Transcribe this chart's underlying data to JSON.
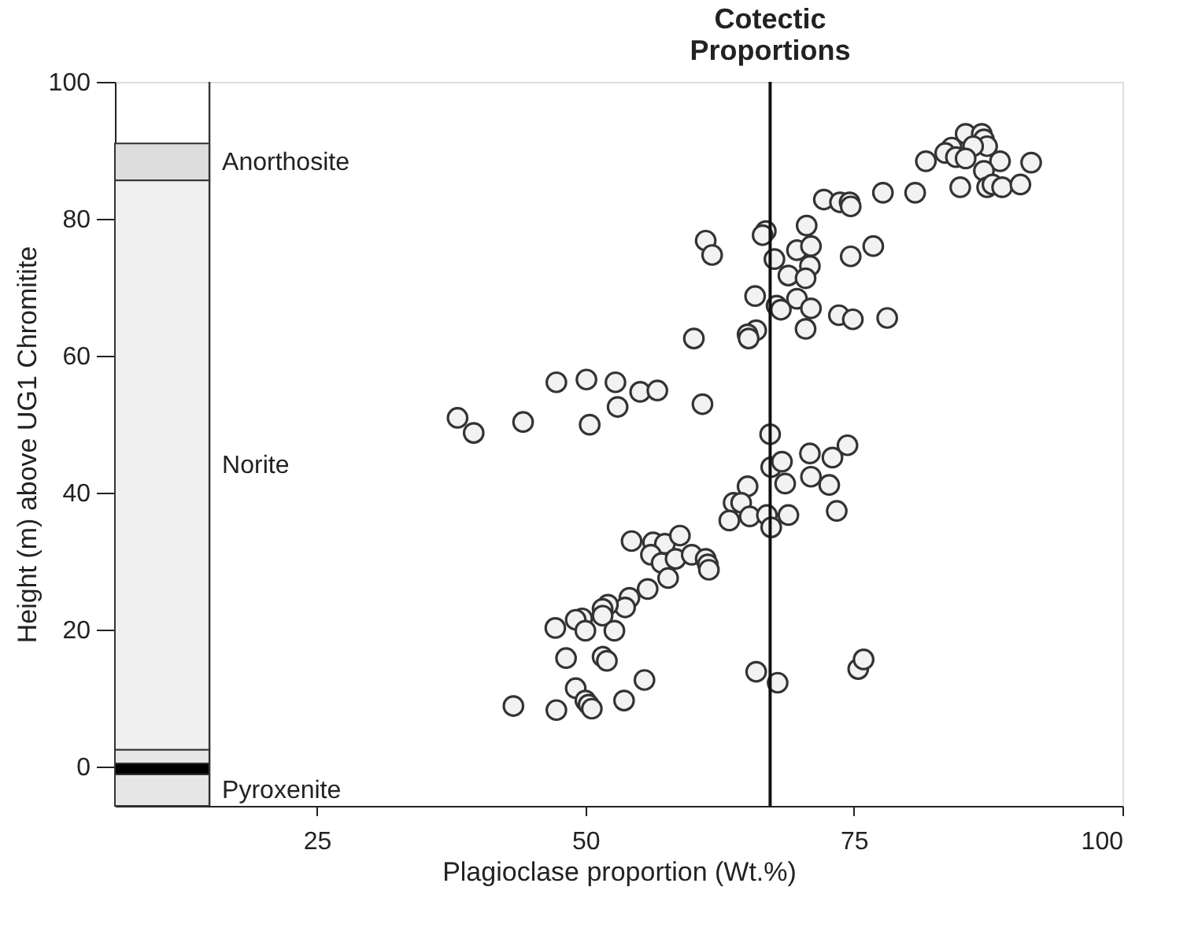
{
  "chart_data": {
    "type": "scatter",
    "xlabel": "Plagioclase proportion (Wt.%)",
    "ylabel": "Height (m) above UG1 Chromitite",
    "xlim": [
      6.2,
      100
    ],
    "xticks": [
      25,
      50,
      75,
      100
    ],
    "ylim": [
      -5.8,
      100
    ],
    "yticks": [
      0,
      20,
      40,
      60,
      80,
      100
    ],
    "grid": false,
    "marker": "circle",
    "ref_lines": [
      {
        "axis": "x",
        "value": 15,
        "color": "#333333"
      },
      {
        "axis": "x",
        "value": 67.2,
        "label": "Cotectic Proportions",
        "color": "#111111"
      }
    ],
    "bands": [
      {
        "axis": "y",
        "from": 85.6,
        "to": 91,
        "label": "Anorthosite",
        "color": "#dddddd"
      },
      {
        "axis": "y",
        "from": 2.4,
        "to": 85.6,
        "label": "Norite",
        "color": "#f0f0f0"
      },
      {
        "axis": "y",
        "from": 0.4,
        "to": 2.4,
        "color": "#e6e6e6"
      },
      {
        "axis": "y",
        "from": -1.2,
        "to": 0.4,
        "color": "#000000"
      },
      {
        "axis": "y",
        "from": -5.8,
        "to": -1.2,
        "label": "Pyroxenite",
        "color": "#e6e6e6"
      }
    ],
    "series": [
      {
        "color": "#333333",
        "x": [
          85.4,
          86.9,
          87.1,
          87.4,
          86.1,
          84.1,
          83.5,
          84.5,
          85.4,
          81.7,
          88.6,
          91.5,
          87.1,
          84.9,
          87.4,
          87.9,
          88.8,
          90.5,
          72.2,
          73.7,
          74.6,
          74.7,
          77.7,
          80.7,
          66.8,
          66.5,
          70.6,
          61.2,
          61.8,
          69.7,
          71.0,
          67.6,
          70.9,
          68.9,
          70.5,
          74.7,
          76.8,
          65.8,
          69.7,
          67.8,
          68.2,
          71.0,
          73.6,
          74.9,
          78.1,
          70.5,
          65.9,
          65.1,
          65.2,
          60.1,
          38.1,
          39.6,
          44.2,
          47.3,
          50.1,
          52.8,
          55.1,
          56.7,
          53.0,
          50.4,
          60.9,
          67.2,
          67.3,
          68.3,
          68.6,
          65.1,
          63.8,
          64.5,
          63.4,
          65.3,
          66.9,
          67.3,
          68.9,
          54.3,
          70.9,
          73.0,
          74.4,
          71.0,
          72.7,
          73.4,
          56.3,
          57.4,
          58.8,
          56.1,
          57.1,
          58.4,
          59.9,
          61.2,
          61.4,
          61.5,
          57.7,
          55.8,
          54.1,
          53.7,
          52.1,
          51.6,
          51.6,
          49.7,
          49.1,
          50.0,
          52.7,
          47.2,
          48.2,
          51.6,
          52.0,
          55.5,
          49.1,
          50.0,
          50.3,
          50.6,
          53.6,
          43.3,
          47.3,
          65.9,
          67.9,
          75.4,
          75.9
        ],
        "values": [
          92.4,
          92.4,
          91.6,
          90.6,
          90.6,
          90.4,
          89.6,
          89.0,
          88.8,
          88.4,
          88.4,
          88.2,
          87.0,
          84.6,
          84.6,
          85.0,
          84.6,
          85.0,
          82.8,
          82.4,
          82.4,
          81.8,
          83.8,
          83.8,
          78.2,
          77.6,
          79.0,
          76.8,
          74.7,
          75.4,
          76.0,
          74.1,
          73.1,
          71.7,
          71.3,
          74.5,
          76.0,
          68.7,
          68.3,
          67.3,
          66.7,
          66.9,
          65.9,
          65.3,
          65.5,
          63.9,
          63.7,
          63.1,
          62.5,
          62.5,
          50.9,
          48.7,
          50.3,
          56.1,
          56.5,
          56.1,
          54.7,
          54.9,
          52.5,
          49.9,
          52.9,
          48.5,
          43.7,
          44.5,
          41.3,
          40.9,
          38.5,
          38.5,
          35.9,
          36.5,
          36.7,
          34.9,
          36.7,
          32.9,
          45.7,
          45.1,
          46.9,
          42.3,
          41.1,
          37.3,
          32.7,
          32.5,
          33.7,
          30.9,
          29.7,
          30.3,
          30.9,
          30.3,
          29.5,
          28.7,
          27.5,
          25.9,
          24.6,
          23.2,
          23.6,
          23.0,
          22.0,
          21.6,
          21.4,
          19.8,
          19.8,
          20.2,
          15.8,
          16.0,
          15.4,
          12.6,
          11.4,
          9.6,
          9.0,
          8.4,
          9.6,
          8.8,
          8.2,
          13.8,
          12.2,
          14.2,
          15.6
        ]
      }
    ]
  }
}
